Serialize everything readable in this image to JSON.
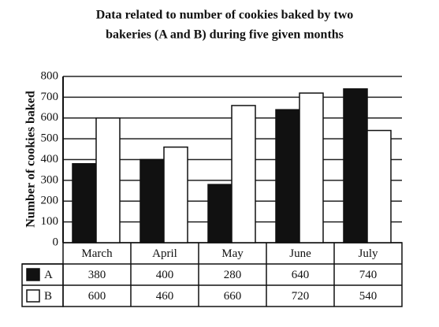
{
  "chart_data": {
    "type": "bar",
    "title": "Data related to number of cookies baked by two",
    "subtitle": "bakeries (A and B) during five given months",
    "y_label": "Number of cookies baked",
    "categories": [
      "March",
      "April",
      "May",
      "June",
      "July"
    ],
    "series": [
      {
        "name": "A",
        "color": "#111111",
        "values": [
          380,
          400,
          280,
          640,
          740
        ]
      },
      {
        "name": "B",
        "color": "#ffffff",
        "values": [
          600,
          460,
          660,
          720,
          540
        ]
      }
    ],
    "ylim": [
      0,
      800
    ],
    "yticks": [
      0,
      100,
      200,
      300,
      400,
      500,
      600,
      700,
      800
    ],
    "grid": true
  }
}
